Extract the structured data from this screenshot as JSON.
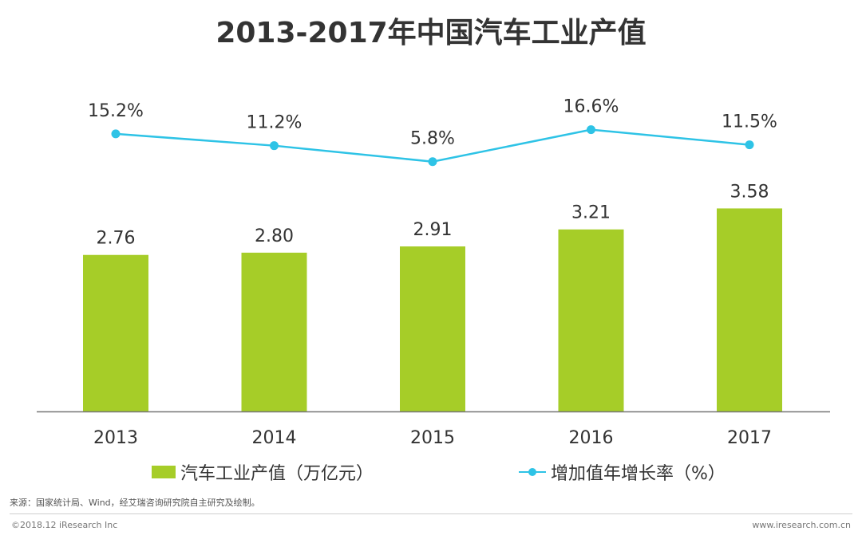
{
  "title": "2013-2017年中国汽车工业产值",
  "chart_data": {
    "type": "bar",
    "categories": [
      "2013",
      "2014",
      "2015",
      "2016",
      "2017"
    ],
    "series": [
      {
        "name": "汽车工业产值（万亿元）",
        "type": "bar",
        "values": [
          2.76,
          2.8,
          2.91,
          3.21,
          3.58
        ],
        "labels": [
          "2.76",
          "2.80",
          "2.91",
          "3.21",
          "3.58"
        ],
        "color": "#a6cd28"
      },
      {
        "name": "增加值年增长率（%）",
        "type": "line",
        "values": [
          15.2,
          11.2,
          5.8,
          16.6,
          11.5
        ],
        "labels": [
          "15.2%",
          "11.2%",
          "5.8%",
          "16.6%",
          "11.5%"
        ],
        "color": "#2ec3e6"
      }
    ],
    "bar_ylim": [
      0,
      3.6
    ],
    "line_ylim": [
      -15,
      20
    ],
    "grid": false,
    "legend_position": "bottom"
  },
  "legend": {
    "bar_label": "汽车工业产值（万亿元）",
    "line_label": "增加值年增长率（%）"
  },
  "source": "来源：国家统计局、Wind，经艾瑞咨询研究院自主研究及绘制。",
  "footer": {
    "copyright": "©2018.12 iResearch Inc",
    "website": "www.iresearch.com.cn"
  }
}
